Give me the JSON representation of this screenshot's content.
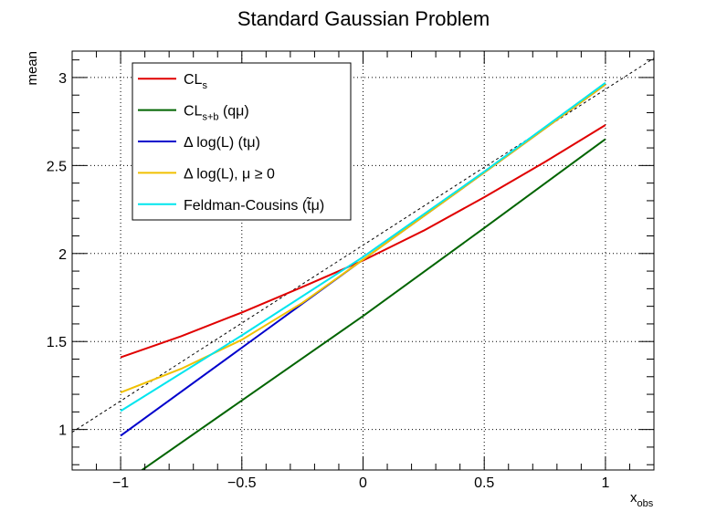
{
  "chart_data": {
    "type": "line",
    "title": "Standard Gaussian Problem",
    "xlabel": "x",
    "xlabel_sub": "obs",
    "ylabel": "mean",
    "xlim": [
      -1.2,
      1.2
    ],
    "ylim": [
      0.77,
      3.15
    ],
    "x_ticks": [
      -1,
      -0.5,
      0,
      0.5,
      1
    ],
    "x_tick_labels": [
      "−1",
      "−0.5",
      "0",
      "0.5",
      "1"
    ],
    "y_ticks": [
      1,
      1.5,
      2,
      2.5,
      3
    ],
    "y_tick_labels": [
      "1",
      "1.5",
      "2",
      "2.5",
      "3"
    ],
    "grid": true,
    "legend_position": "top-left",
    "reference_line": {
      "style": "dashed",
      "color": "#000000",
      "x": [
        -1.2,
        1.2
      ],
      "y": [
        0.985,
        3.11
      ]
    },
    "series": [
      {
        "name": "CL",
        "sub": "s",
        "suffix": "",
        "color": "#e00000",
        "x": [
          -1.0,
          -0.75,
          -0.5,
          -0.25,
          0.0,
          0.25,
          0.5,
          0.75,
          1.0
        ],
        "y": [
          1.41,
          1.53,
          1.665,
          1.81,
          1.96,
          2.13,
          2.32,
          2.52,
          2.73
        ]
      },
      {
        "name": "CL",
        "sub": "s+b",
        "suffix": " (qμ)",
        "color": "#006400",
        "x": [
          -1.0,
          -0.5,
          0.0,
          0.5,
          1.0
        ],
        "y": [
          0.685,
          1.165,
          1.645,
          2.145,
          2.65
        ]
      },
      {
        "name": "Δ log(L) (tμ)",
        "sub": "",
        "suffix": "",
        "color": "#0000cc",
        "x": [
          -1.0,
          -0.5,
          0.0,
          0.5,
          1.0
        ],
        "y": [
          0.965,
          1.465,
          1.965,
          2.46,
          2.96
        ]
      },
      {
        "name": "Δ log(L), μ ≥ 0",
        "sub": "",
        "suffix": "",
        "color": "#f0c000",
        "x": [
          -1.0,
          -0.75,
          -0.5,
          -0.25,
          0.0,
          0.5,
          1.0
        ],
        "y": [
          1.21,
          1.345,
          1.51,
          1.72,
          1.965,
          2.46,
          2.96
        ]
      },
      {
        "name": "Feldman-Cousins (t̃μ)",
        "sub": "",
        "suffix": "",
        "color": "#00e5ee",
        "x": [
          -1.0,
          -0.5,
          0.0,
          0.5,
          1.0
        ],
        "y": [
          1.105,
          1.535,
          1.98,
          2.465,
          2.97
        ]
      }
    ]
  }
}
